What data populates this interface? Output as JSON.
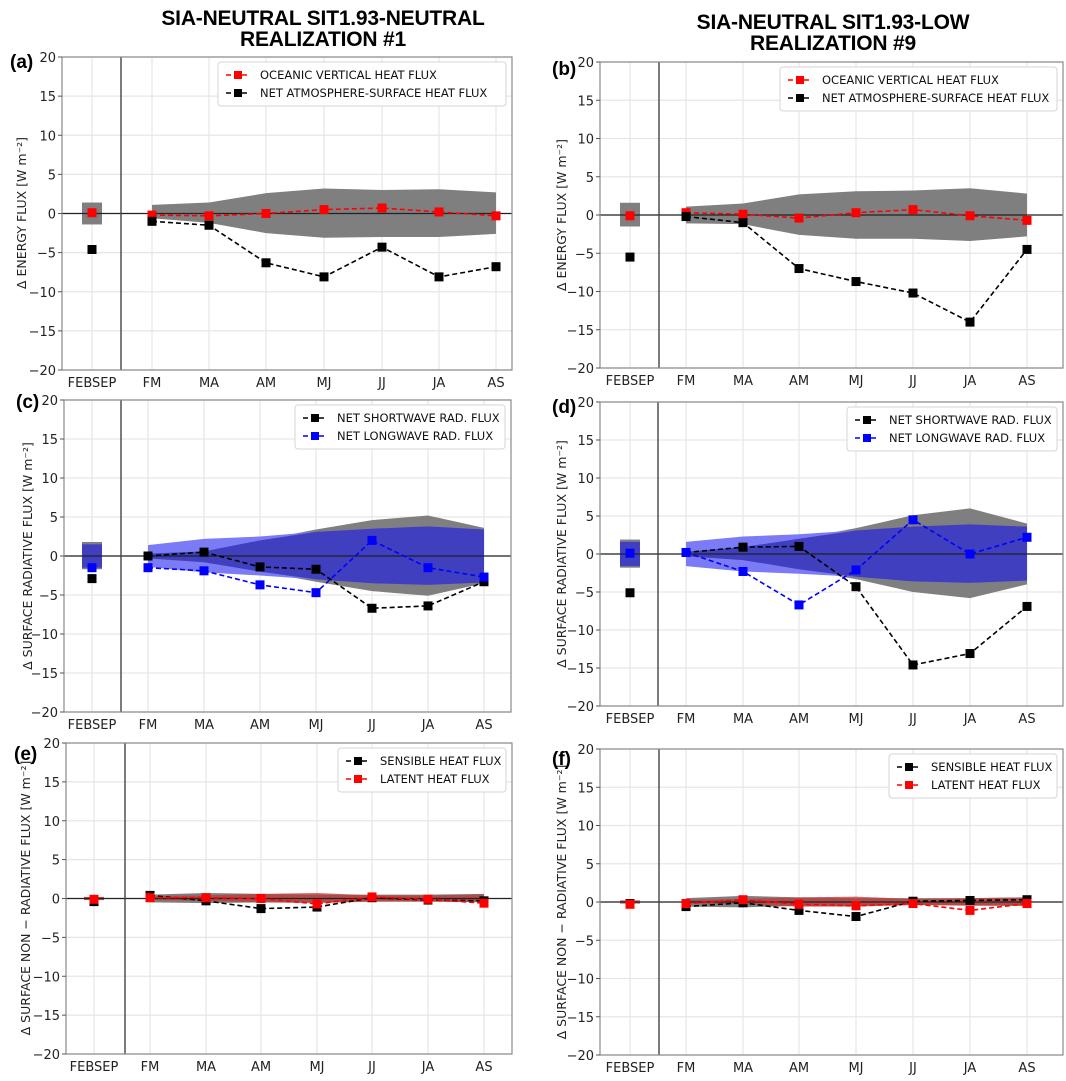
{
  "titles": {
    "left_line1": "SIA-NEUTRAL SIT1.93-NEUTRAL",
    "left_line2": "REALIZATION #1",
    "right_line1": "SIA-NEUTRAL SIT1.93-LOW",
    "right_line2": "REALIZATION #9"
  },
  "colors": {
    "red": "#ff0000",
    "black": "#000000",
    "blue": "#0000ff",
    "band_gray": "#7f7f7f",
    "band_blue_light": "#7b7bf5",
    "band_blue_dark": "#3f3fbf",
    "band_red": "#c0393b",
    "grid": "#e6e6e6"
  },
  "chart_data": [
    {
      "id": "a",
      "panel_label": "(a)",
      "type": "line",
      "ylabel": "Δ ENERGY FLUX [W m⁻²]",
      "ylim": [
        -20,
        20
      ],
      "yticks": [
        20,
        15,
        10,
        5,
        0,
        -5,
        -10,
        -15,
        -20
      ],
      "x": [
        "FEBSEP",
        "FM",
        "MA",
        "AM",
        "MJ",
        "JJ",
        "JA",
        "AS"
      ],
      "grid": true,
      "legend_position": "top-right",
      "bands": [
        {
          "name": "spread",
          "color": "band_gray",
          "upper": [
            1.4,
            1.1,
            1.4,
            2.6,
            3.2,
            3.0,
            3.1,
            2.7
          ],
          "lower": [
            -1.4,
            -0.6,
            -1.2,
            -2.5,
            -3.1,
            -3.0,
            -3.0,
            -2.6
          ]
        }
      ],
      "series": [
        {
          "name": "OCEANIC VERTICAL HEAT FLUX",
          "color": "red",
          "values": [
            0.1,
            -0.2,
            -0.3,
            0.0,
            0.5,
            0.7,
            0.2,
            -0.3
          ]
        },
        {
          "name": "NET ATMOSPHERE-SURFACE HEAT FLUX",
          "color": "black",
          "values": [
            -4.6,
            -1.0,
            -1.5,
            -6.3,
            -8.1,
            -4.3,
            -8.1,
            -6.8
          ]
        }
      ]
    },
    {
      "id": "b",
      "panel_label": "(b)",
      "type": "line",
      "ylabel": "Δ ENERGY FLUX [W m⁻²]",
      "ylim": [
        -20,
        20
      ],
      "yticks": [
        20,
        15,
        10,
        5,
        0,
        -5,
        -10,
        -15,
        -20
      ],
      "x": [
        "FEBSEP",
        "FM",
        "MA",
        "AM",
        "MJ",
        "JJ",
        "JA",
        "AS"
      ],
      "grid": true,
      "legend_position": "top-right",
      "bands": [
        {
          "name": "spread",
          "color": "band_gray",
          "upper": [
            1.6,
            1.1,
            1.5,
            2.7,
            3.1,
            3.2,
            3.5,
            2.8
          ],
          "lower": [
            -1.5,
            -1.1,
            -1.2,
            -2.6,
            -3.1,
            -3.1,
            -3.4,
            -2.8
          ]
        }
      ],
      "series": [
        {
          "name": "OCEANIC VERTICAL HEAT FLUX",
          "color": "red",
          "values": [
            -0.1,
            0.3,
            0.1,
            -0.4,
            0.3,
            0.7,
            -0.1,
            -0.7
          ]
        },
        {
          "name": "NET ATMOSPHERE-SURFACE HEAT FLUX",
          "color": "black",
          "values": [
            -5.5,
            -0.2,
            -1.0,
            -7.0,
            -8.7,
            -10.2,
            -14.0,
            -4.5
          ]
        }
      ]
    },
    {
      "id": "c",
      "panel_label": "(c)",
      "type": "line",
      "ylabel": "Δ SURFACE RADIATIVE FLUX [W m⁻²]",
      "ylim": [
        -20,
        20
      ],
      "yticks": [
        20,
        15,
        10,
        5,
        0,
        -5,
        -10,
        -15,
        -20
      ],
      "x": [
        "FEBSEP",
        "FM",
        "MA",
        "AM",
        "MJ",
        "JJ",
        "JA",
        "AS"
      ],
      "grid": true,
      "legend_position": "top-right",
      "bands": [
        {
          "name": "shortwave spread",
          "color": "band_gray",
          "upper": [
            1.8,
            0.3,
            0.6,
            2.0,
            3.4,
            4.6,
            5.2,
            3.6
          ],
          "lower": [
            -1.7,
            -0.3,
            -0.8,
            -2.0,
            -3.3,
            -4.5,
            -5.1,
            -3.5
          ]
        },
        {
          "name": "longwave spread",
          "color": "band_blue_light",
          "upper": [
            1.5,
            1.4,
            2.2,
            2.5,
            3.1,
            3.5,
            3.8,
            3.4
          ],
          "lower": [
            -1.5,
            -1.4,
            -2.1,
            -2.5,
            -3.0,
            -3.5,
            -3.7,
            -3.4
          ]
        },
        {
          "name": "overlap",
          "color": "band_blue_dark",
          "upper": [
            1.5,
            0.3,
            0.6,
            2.0,
            3.1,
            3.5,
            3.8,
            3.4
          ],
          "lower": [
            -1.5,
            -0.3,
            -0.8,
            -2.0,
            -3.0,
            -3.5,
            -3.7,
            -3.4
          ]
        }
      ],
      "series": [
        {
          "name": "NET SHORTWAVE RAD. FLUX",
          "color": "black",
          "values": [
            -2.9,
            0.0,
            0.5,
            -1.4,
            -1.7,
            -6.7,
            -6.4,
            -3.3
          ]
        },
        {
          "name": "NET LONGWAVE RAD. FLUX",
          "color": "blue",
          "values": [
            -1.5,
            -1.5,
            -1.9,
            -3.7,
            -4.7,
            2.0,
            -1.5,
            -2.7
          ]
        }
      ]
    },
    {
      "id": "d",
      "panel_label": "(d)",
      "type": "line",
      "ylabel": "Δ SURFACE RADIATIVE FLUX [W m⁻²]",
      "ylim": [
        -20,
        20
      ],
      "yticks": [
        20,
        15,
        10,
        5,
        0,
        -5,
        -10,
        -15,
        -20
      ],
      "x": [
        "FEBSEP",
        "FM",
        "MA",
        "AM",
        "MJ",
        "JJ",
        "JA",
        "AS"
      ],
      "grid": true,
      "legend_position": "top-right",
      "bands": [
        {
          "name": "shortwave spread",
          "color": "band_gray",
          "upper": [
            1.9,
            0.3,
            0.9,
            2.0,
            3.4,
            5.1,
            6.0,
            4.0
          ],
          "lower": [
            -1.8,
            -0.3,
            -0.8,
            -2.0,
            -3.3,
            -5.0,
            -5.8,
            -4.0
          ]
        },
        {
          "name": "longwave spread",
          "color": "band_blue_light",
          "upper": [
            1.6,
            1.6,
            2.3,
            2.6,
            3.1,
            3.6,
            3.9,
            3.6
          ],
          "lower": [
            -1.6,
            -1.6,
            -2.3,
            -2.6,
            -3.0,
            -3.6,
            -3.8,
            -3.5
          ]
        },
        {
          "name": "overlap",
          "color": "band_blue_dark",
          "upper": [
            1.6,
            0.3,
            0.9,
            2.0,
            3.1,
            3.6,
            3.9,
            3.6
          ],
          "lower": [
            -1.6,
            -0.3,
            -0.8,
            -2.0,
            -3.0,
            -3.6,
            -3.8,
            -3.5
          ]
        }
      ],
      "series": [
        {
          "name": "NET SHORTWAVE RAD. FLUX",
          "color": "black",
          "values": [
            -5.1,
            0.2,
            0.9,
            1.0,
            -4.3,
            -14.6,
            -13.1,
            -6.9
          ]
        },
        {
          "name": "NET LONGWAVE RAD. FLUX",
          "color": "blue",
          "values": [
            0.1,
            0.2,
            -2.3,
            -6.7,
            -2.1,
            4.5,
            0.0,
            2.2
          ]
        }
      ]
    },
    {
      "id": "e",
      "panel_label": "(e)",
      "type": "line",
      "ylabel": "Δ SURFACE NON − RADIATIVE FLUX [W m⁻²]",
      "ylim": [
        -20,
        20
      ],
      "yticks": [
        20,
        15,
        10,
        5,
        0,
        -5,
        -10,
        -15,
        -20
      ],
      "x": [
        "FEBSEP",
        "FM",
        "MA",
        "AM",
        "MJ",
        "JJ",
        "JA",
        "AS"
      ],
      "grid": true,
      "legend_position": "top-right",
      "bands": [
        {
          "name": "sensible spread",
          "color": "band_gray",
          "upper": [
            0.2,
            0.5,
            0.7,
            0.6,
            0.5,
            0.5,
            0.5,
            0.6
          ],
          "lower": [
            -0.2,
            -0.5,
            -0.6,
            -0.5,
            -0.5,
            -0.4,
            -0.4,
            -0.5
          ]
        },
        {
          "name": "latent spread",
          "color": "band_red",
          "upper": [
            0.2,
            0.3,
            0.4,
            0.6,
            0.7,
            0.4,
            0.4,
            0.5
          ],
          "lower": [
            -0.2,
            -0.2,
            -0.3,
            -0.5,
            -0.6,
            -0.4,
            -0.4,
            -0.4
          ]
        }
      ],
      "series": [
        {
          "name": "SENSIBLE HEAT FLUX",
          "color": "black",
          "values": [
            -0.4,
            0.4,
            -0.3,
            -1.3,
            -1.1,
            0.1,
            -0.2,
            -0.3
          ]
        },
        {
          "name": "LATENT HEAT FLUX",
          "color": "red",
          "values": [
            -0.1,
            0.1,
            0.1,
            0.0,
            -0.7,
            0.2,
            -0.1,
            -0.6
          ]
        }
      ]
    },
    {
      "id": "f",
      "panel_label": "(f)",
      "type": "line",
      "ylabel": "Δ SURFACE NON − RADIATIVE FLUX [W m⁻²]",
      "ylim": [
        -20,
        20
      ],
      "yticks": [
        20,
        15,
        10,
        5,
        0,
        -5,
        -10,
        -15,
        -20
      ],
      "x": [
        "FEBSEP",
        "FM",
        "MA",
        "AM",
        "MJ",
        "JJ",
        "JA",
        "AS"
      ],
      "grid": true,
      "legend_position": "top-right",
      "bands": [
        {
          "name": "sensible spread",
          "color": "band_gray",
          "upper": [
            0.2,
            0.5,
            0.8,
            0.6,
            0.5,
            0.5,
            0.5,
            0.6
          ],
          "lower": [
            -0.2,
            -0.6,
            -0.7,
            -0.5,
            -0.5,
            -0.4,
            -0.4,
            -0.5
          ]
        },
        {
          "name": "latent spread",
          "color": "band_red",
          "upper": [
            0.2,
            0.3,
            0.4,
            0.6,
            0.7,
            0.4,
            0.5,
            0.6
          ],
          "lower": [
            -0.2,
            -0.2,
            -0.3,
            -0.6,
            -0.6,
            -0.4,
            -0.5,
            -0.5
          ]
        }
      ],
      "series": [
        {
          "name": "SENSIBLE HEAT FLUX",
          "color": "black",
          "values": [
            -0.2,
            -0.6,
            -0.1,
            -1.1,
            -1.9,
            0.1,
            0.2,
            0.3
          ]
        },
        {
          "name": "LATENT HEAT FLUX",
          "color": "red",
          "values": [
            -0.3,
            -0.2,
            0.3,
            -0.3,
            -0.5,
            -0.2,
            -1.1,
            -0.2
          ]
        }
      ]
    }
  ]
}
